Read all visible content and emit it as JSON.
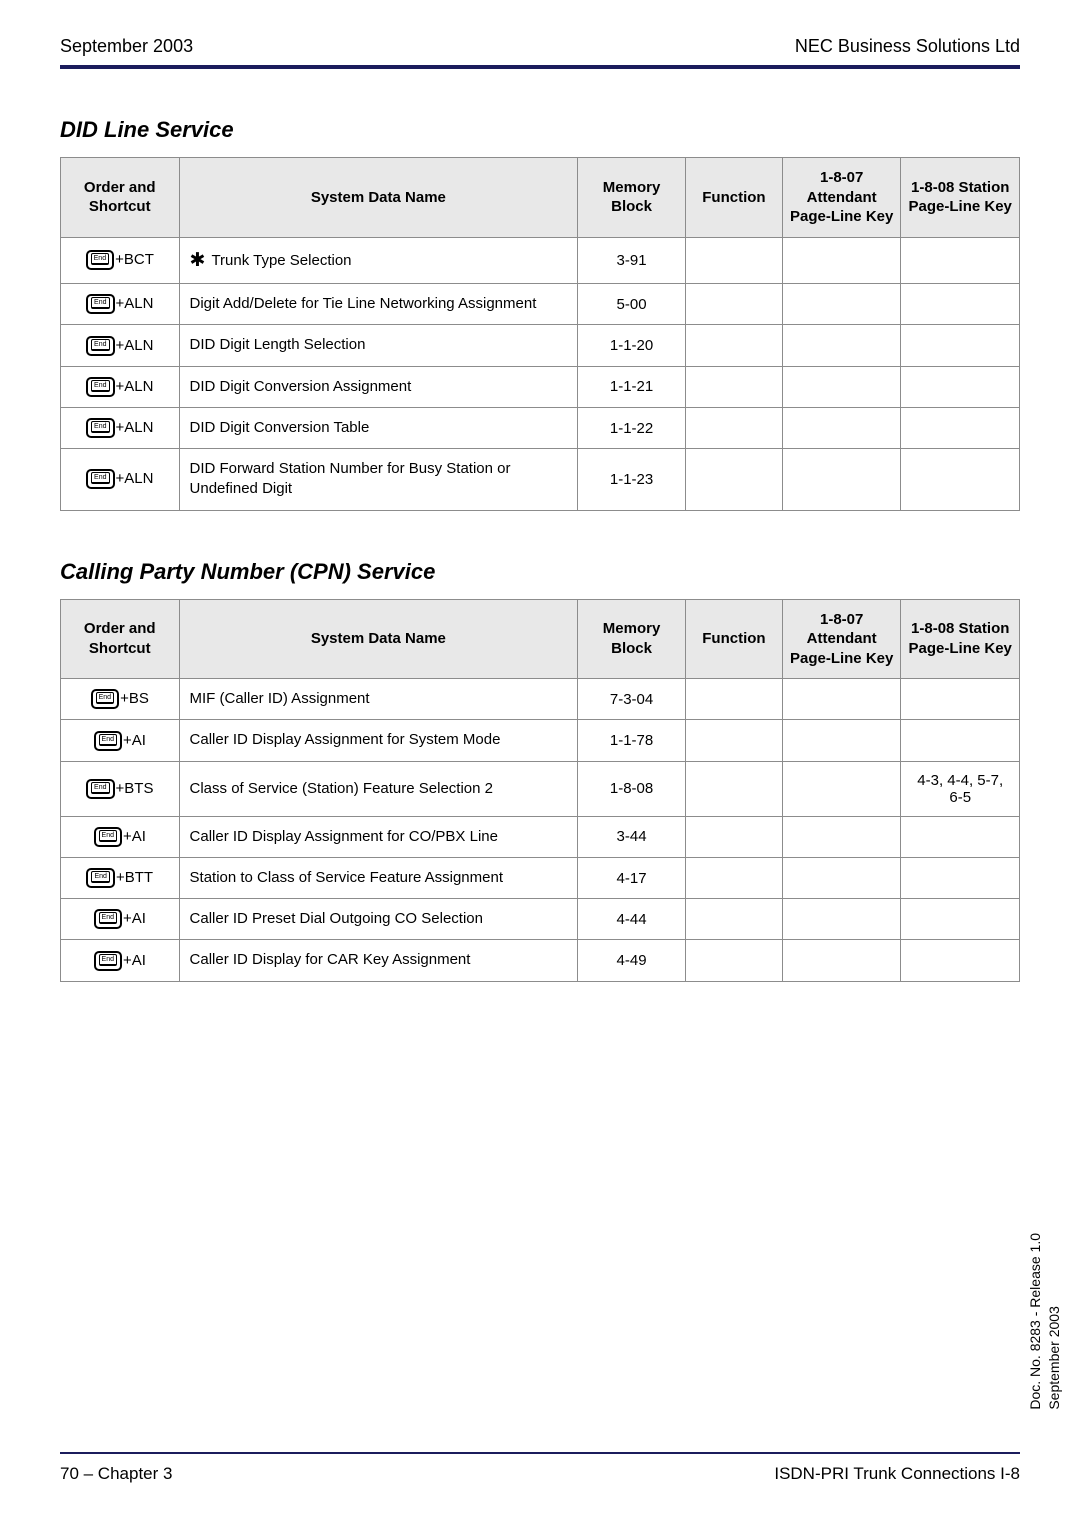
{
  "header": {
    "left": "September 2003",
    "right": "NEC Business Solutions Ltd"
  },
  "sections": [
    {
      "title": "DID Line Service"
    },
    {
      "title": "Calling Party Number (CPN) Service"
    }
  ],
  "columns": {
    "c0": "Order\nand\nShortcut",
    "c1": "System Data Name",
    "c2": "Memory\nBlock",
    "c3": "Function",
    "c4": "1-8-07\nAttendant\nPage-Line\nKey",
    "c5": "1-8-08\nStation\nPage-Line\nKey"
  },
  "table1": {
    "rows": [
      {
        "sc": "+BCT",
        "name": "Trunk Type Selection",
        "star": true,
        "mem": "3-91",
        "func": "",
        "att": "",
        "sta": ""
      },
      {
        "sc": "+ALN",
        "name": "Digit Add/Delete for Tie Line Networking Assignment",
        "star": false,
        "mem": "5-00",
        "func": "",
        "att": "",
        "sta": ""
      },
      {
        "sc": "+ALN",
        "name": "DID Digit Length Selection",
        "star": false,
        "mem": "1-1-20",
        "func": "",
        "att": "",
        "sta": ""
      },
      {
        "sc": "+ALN",
        "name": "DID Digit Conversion Assignment",
        "star": false,
        "mem": "1-1-21",
        "func": "",
        "att": "",
        "sta": ""
      },
      {
        "sc": "+ALN",
        "name": "DID Digit Conversion Table",
        "star": false,
        "mem": "1-1-22",
        "func": "",
        "att": "",
        "sta": ""
      },
      {
        "sc": "+ALN",
        "name": "DID Forward Station Number for Busy Station or Undefined Digit",
        "star": false,
        "mem": "1-1-23",
        "func": "",
        "att": "",
        "sta": ""
      }
    ]
  },
  "table2": {
    "rows": [
      {
        "sc": "+BS",
        "name": "MIF (Caller ID) Assignment",
        "star": false,
        "mem": "7-3-04",
        "func": "",
        "att": "",
        "sta": ""
      },
      {
        "sc": "+AI",
        "name": "Caller ID Display Assignment for System Mode",
        "star": false,
        "mem": "1-1-78",
        "func": "",
        "att": "",
        "sta": ""
      },
      {
        "sc": "+BTS",
        "name": "Class of Service (Station) Feature Selection 2",
        "star": false,
        "mem": "1-8-08",
        "func": "",
        "att": "",
        "sta": "4-3, 4-4, 5-7, 6-5"
      },
      {
        "sc": "+AI",
        "name": "Caller ID Display Assignment for CO/PBX Line",
        "star": false,
        "mem": "3-44",
        "func": "",
        "att": "",
        "sta": ""
      },
      {
        "sc": "+BTT",
        "name": "Station to Class of Service Feature Assignment",
        "star": false,
        "mem": "4-17",
        "func": "",
        "att": "",
        "sta": ""
      },
      {
        "sc": "+AI",
        "name": "Caller ID Preset Dial Outgoing CO Selection",
        "star": false,
        "mem": "4-44",
        "func": "",
        "att": "",
        "sta": ""
      },
      {
        "sc": "+AI",
        "name": "Caller ID Display for CAR Key Assignment",
        "star": false,
        "mem": "4-49",
        "func": "",
        "att": "",
        "sta": ""
      }
    ]
  },
  "footer": {
    "left": "70 – Chapter 3",
    "right": "ISDN-PRI Trunk Connections I-8"
  },
  "side": "Doc. No. 8283 - Release 1.0\nSeptember 2003",
  "icon": {
    "end_label": "End"
  },
  "colors": {
    "rule": "#1b1c5c",
    "header_bg": "#e8e8e8",
    "border": "#8c8c8c"
  }
}
